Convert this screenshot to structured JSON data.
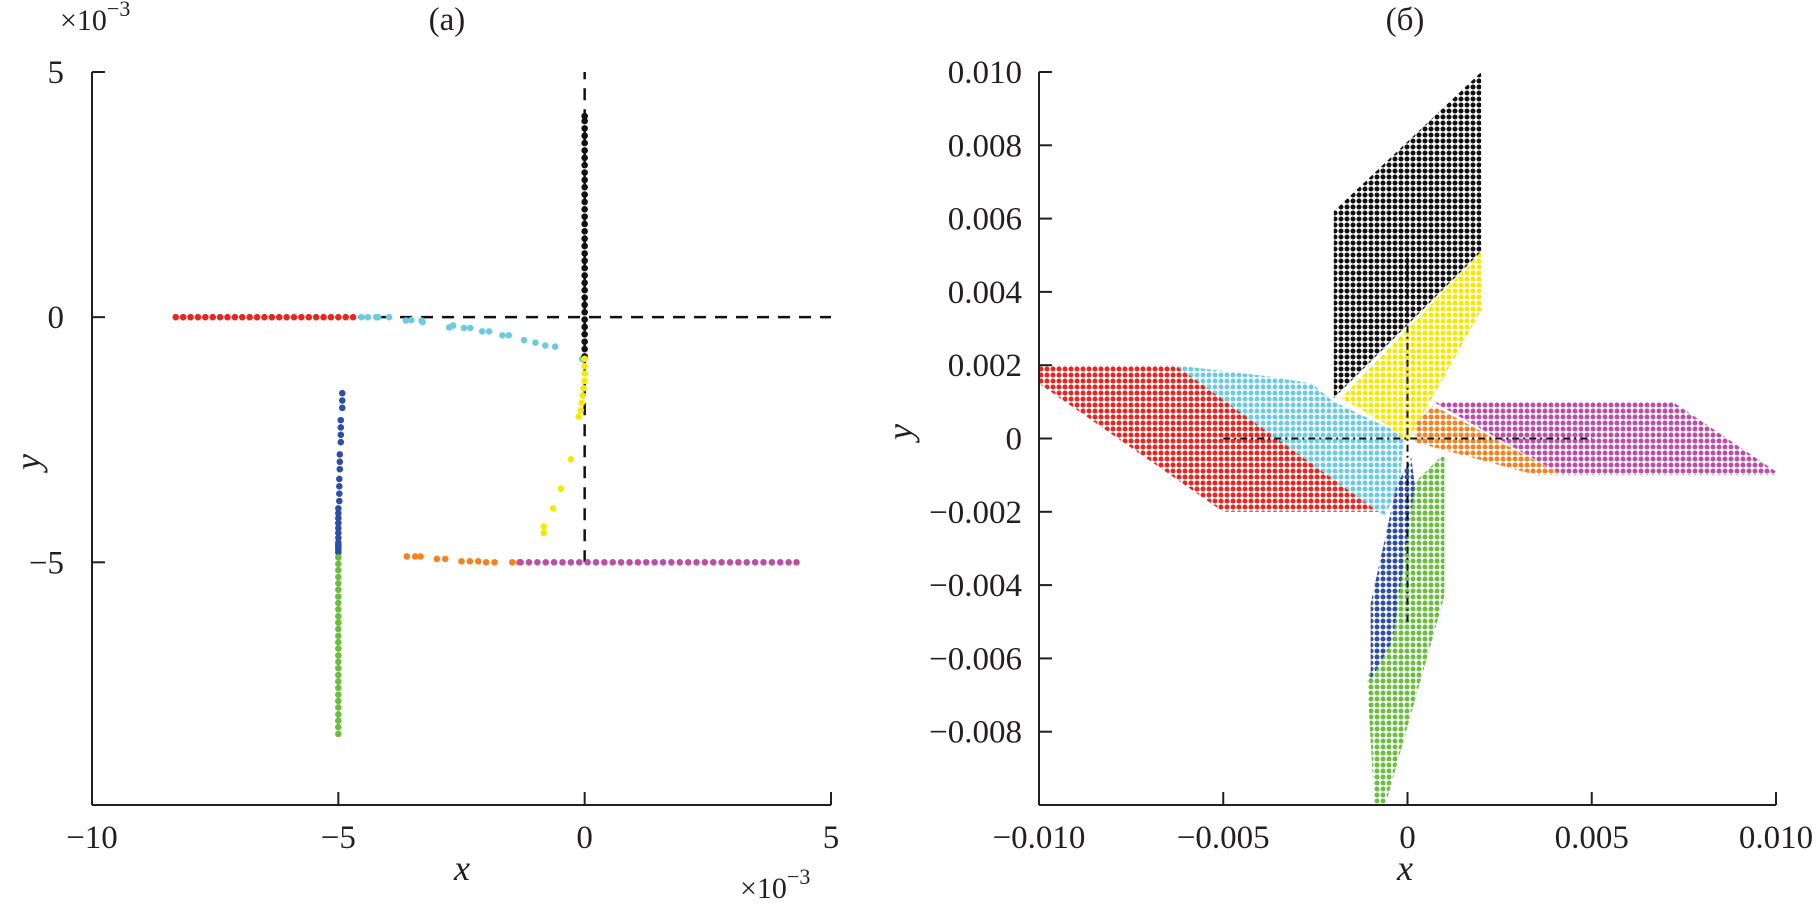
{
  "chart_data": [
    {
      "type": "scatter",
      "title": "(a)",
      "xlabel": "x",
      "ylabel": "y",
      "x_multiplier": "×10",
      "y_multiplier": "×10",
      "multiplier_exponent": "−3",
      "xlim": [
        -10,
        5
      ],
      "ylim": [
        -9.95,
        5
      ],
      "xticks": [
        -10,
        -5,
        0,
        5
      ],
      "xtick_labels": [
        "−10",
        "−5",
        "0",
        "5"
      ],
      "yticks": [
        5,
        0,
        -5
      ],
      "ytick_labels": [
        "5",
        "0",
        "−5"
      ],
      "grid": false,
      "reference_lines": [
        {
          "name": "horizontal",
          "x": [
            -4.6,
            5
          ],
          "y": [
            0,
            0
          ],
          "style": "dashed"
        },
        {
          "name": "vertical",
          "x": [
            0,
            0
          ],
          "y": [
            -5,
            5
          ],
          "style": "dashed"
        }
      ],
      "series": [
        {
          "name": "red",
          "color": "#e8251f",
          "x": [
            -8.3,
            -8.15,
            -8.0,
            -7.85,
            -7.7,
            -7.55,
            -7.4,
            -7.25,
            -7.1,
            -6.95,
            -6.8,
            -6.65,
            -6.5,
            -6.35,
            -6.2,
            -6.05,
            -5.9,
            -5.75,
            -5.6,
            -5.45,
            -5.3,
            -5.15,
            -5.0,
            -4.85,
            -4.7
          ],
          "y": [
            0,
            0,
            0,
            0,
            0,
            0,
            0,
            0,
            0,
            0,
            0,
            0,
            0,
            0,
            0,
            0,
            0,
            0,
            0,
            0,
            0,
            0,
            0,
            0,
            0
          ]
        },
        {
          "name": "cyan",
          "color": "#6ccbe0",
          "x": [
            -4.53,
            -4.4,
            -4.23,
            -4.19,
            -3.97,
            -3.63,
            -3.52,
            -3.31,
            -3.29,
            -2.75,
            -2.67,
            -2.45,
            -2.32,
            -2.08,
            -1.94,
            -1.67,
            -1.54,
            -1.23,
            -1.0,
            -0.8,
            -0.6,
            -0.05
          ],
          "y": [
            0,
            0,
            0,
            0,
            0,
            -0.07,
            -0.06,
            -0.07,
            -0.1,
            -0.21,
            -0.17,
            -0.22,
            -0.22,
            -0.29,
            -0.29,
            -0.37,
            -0.37,
            -0.47,
            -0.52,
            -0.58,
            -0.6,
            -0.85
          ]
        },
        {
          "name": "black",
          "color": "#111111",
          "x": [
            0,
            0,
            0,
            0,
            0,
            0,
            0,
            0,
            0,
            0,
            0,
            0,
            0,
            0,
            0,
            0,
            0,
            0,
            0,
            0,
            0,
            0,
            0,
            0,
            0,
            0,
            0,
            0,
            0,
            0,
            0,
            0,
            0,
            0
          ],
          "y": [
            -0.8,
            -0.65,
            -0.5,
            -0.35,
            -0.2,
            -0.05,
            0.1,
            0.25,
            0.4,
            0.55,
            0.7,
            0.85,
            1.0,
            1.15,
            1.3,
            1.45,
            1.6,
            1.75,
            1.9,
            2.05,
            2.2,
            2.35,
            2.5,
            2.65,
            2.8,
            2.95,
            3.1,
            3.25,
            3.4,
            3.55,
            3.7,
            3.85,
            4.0,
            4.1
          ]
        },
        {
          "name": "yellow",
          "color": "#f5e900",
          "x": [
            0,
            0,
            0,
            0,
            -0.02,
            -0.04,
            -0.06,
            -0.08,
            -0.12,
            -0.28,
            -0.48,
            -0.64,
            -0.83,
            -0.83
          ],
          "y": [
            -0.85,
            -1.0,
            -1.15,
            -1.3,
            -1.45,
            -1.6,
            -1.75,
            -1.9,
            -2.03,
            -2.9,
            -3.5,
            -3.9,
            -4.27,
            -4.4
          ]
        },
        {
          "name": "blue",
          "color": "#2e4fa3",
          "x": [
            -4.92,
            -4.92,
            -4.92,
            -4.95,
            -4.95,
            -4.95,
            -4.95,
            -4.97,
            -4.97,
            -4.97,
            -4.98,
            -4.98,
            -4.98,
            -4.98,
            -5,
            -5,
            -5,
            -5,
            -5,
            -5,
            -5,
            -5,
            -5,
            -5,
            -5,
            -5
          ],
          "y": [
            -1.55,
            -1.7,
            -1.85,
            -2.1,
            -2.25,
            -2.4,
            -2.55,
            -2.8,
            -2.95,
            -3.1,
            -3.3,
            -3.45,
            -3.6,
            -3.75,
            -3.9,
            -4.0,
            -4.1,
            -4.2,
            -4.3,
            -4.4,
            -4.5,
            -4.6,
            -4.7,
            -4.8,
            -4.75,
            -4.65
          ]
        },
        {
          "name": "green",
          "color": "#6abf3f",
          "x": [
            -5,
            -5,
            -5,
            -5,
            -5,
            -5,
            -5,
            -5,
            -5,
            -5,
            -5,
            -5,
            -5,
            -5,
            -5,
            -5,
            -5,
            -5,
            -5,
            -5,
            -5,
            -5,
            -5,
            -5,
            -5,
            -5,
            -5,
            -5
          ],
          "y": [
            -4.9,
            -5.03,
            -5.16,
            -5.3,
            -5.43,
            -5.56,
            -5.7,
            -5.83,
            -5.96,
            -6.1,
            -6.23,
            -6.36,
            -6.5,
            -6.63,
            -6.76,
            -6.9,
            -7.03,
            -7.16,
            -7.3,
            -7.43,
            -7.56,
            -7.7,
            -7.83,
            -7.96,
            -8.1,
            -8.23,
            -8.36,
            -8.5
          ]
        },
        {
          "name": "orange",
          "color": "#f5821f",
          "x": [
            -3.61,
            -3.44,
            -3.33,
            -3.0,
            -2.83,
            -2.5,
            -2.33,
            -2.16,
            -2.0,
            -1.83,
            -1.47,
            -1.33
          ],
          "y": [
            -4.88,
            -4.88,
            -4.88,
            -4.93,
            -4.93,
            -4.98,
            -4.98,
            -4.98,
            -5,
            -5,
            -5,
            -5
          ]
        },
        {
          "name": "magenta",
          "color": "#b94fa8",
          "x": [
            -1.3,
            -1.13,
            -0.96,
            -0.79,
            -0.62,
            -0.45,
            -0.28,
            -0.11,
            0.06,
            0.23,
            0.4,
            0.57,
            0.74,
            0.91,
            1.08,
            1.25,
            1.42,
            1.59,
            1.76,
            1.93,
            2.1,
            2.27,
            2.44,
            2.61,
            2.78,
            2.95,
            3.12,
            3.29,
            3.46,
            3.63,
            3.8,
            3.97,
            4.14,
            4.3
          ],
          "y": [
            -5,
            -5,
            -5,
            -5,
            -5,
            -5,
            -5,
            -5,
            -5,
            -5,
            -5,
            -5,
            -5,
            -5,
            -5,
            -5,
            -5,
            -5,
            -5,
            -5,
            -5,
            -5,
            -5,
            -5,
            -5,
            -5,
            -5,
            -5,
            -5,
            -5,
            -5,
            -5,
            -5,
            -5
          ]
        }
      ]
    },
    {
      "type": "scatter",
      "title": "(б)",
      "xlabel": "x",
      "ylabel": "y",
      "xlim": [
        -0.01,
        0.01
      ],
      "ylim": [
        -0.01,
        0.01
      ],
      "xticks": [
        -0.01,
        -0.005,
        0,
        0.005,
        0.01
      ],
      "xtick_labels": [
        "−0.010",
        "−0.005",
        "0",
        "0.005",
        "0.010"
      ],
      "yticks": [
        0.01,
        0.008,
        0.006,
        0.004,
        0.002,
        0,
        -0.002,
        -0.004,
        -0.006,
        -0.008
      ],
      "ytick_labels": [
        "0.010",
        "0.008",
        "0.006",
        "0.004",
        "0.002",
        "0",
        "−0.002",
        "−0.004",
        "−0.006",
        "−0.008"
      ],
      "grid": false,
      "reference_lines": [
        {
          "name": "horizontal",
          "x": [
            -0.005,
            0.005
          ],
          "y": [
            0,
            0
          ],
          "style": "dash-dot"
        },
        {
          "name": "vertical",
          "x": [
            0,
            0
          ],
          "y": [
            -0.005,
            0.005
          ],
          "style": "dash-dot"
        }
      ],
      "regions": [
        {
          "name": "red",
          "color": "#e8251f",
          "points": [
            [
              -0.01,
              0.002
            ],
            [
              -0.0063,
              0.002
            ],
            [
              -0.0007,
              -0.002
            ],
            [
              -0.005,
              -0.002
            ],
            [
              -0.01,
              0.0015
            ]
          ]
        },
        {
          "name": "cyan",
          "color": "#6ccbe0",
          "points": [
            [
              -0.0063,
              0.002
            ],
            [
              -0.0038,
              0.0017
            ],
            [
              -0.0026,
              0.0015
            ],
            [
              -0.002,
              0.001
            ],
            [
              -0.0001,
              0.0001
            ],
            [
              -0.0002,
              -0.0012
            ],
            [
              -0.0006,
              -0.0021
            ],
            [
              -0.0008,
              -0.002
            ]
          ]
        },
        {
          "name": "black",
          "color": "#111111",
          "points": [
            [
              -0.002,
              0.0062
            ],
            [
              0.002,
              0.01
            ],
            [
              0.002,
              0.0051
            ],
            [
              -0.002,
              0.0011
            ]
          ]
        },
        {
          "name": "yellow",
          "color": "#f5e900",
          "points": [
            [
              -0.0018,
              0.0011
            ],
            [
              0.002,
              0.0051
            ],
            [
              0.002,
              0.0035
            ],
            [
              0.0,
              -0.0001
            ],
            [
              -0.0006,
              0.0004
            ]
          ]
        },
        {
          "name": "magenta",
          "color": "#b94fa8",
          "points": [
            [
              0.0007,
              0.001
            ],
            [
              0.0072,
              0.001
            ],
            [
              0.01,
              -0.0009
            ],
            [
              0.01,
              -0.001
            ],
            [
              0.0042,
              -0.001
            ]
          ]
        },
        {
          "name": "orange",
          "color": "#f5821f",
          "points": [
            [
              0.0002,
              0.0004
            ],
            [
              0.0007,
              0.0009
            ],
            [
              0.0042,
              -0.001
            ],
            [
              0.0035,
              -0.001
            ],
            [
              0.0002,
              -0.0001
            ]
          ]
        },
        {
          "name": "green",
          "color": "#6abf3f",
          "points": [
            [
              0.0001,
              -0.0013
            ],
            [
              0.0009,
              -0.0005
            ],
            [
              0.001,
              -0.0005
            ],
            [
              0.001,
              -0.0043
            ],
            [
              -0.0006,
              -0.01
            ],
            [
              -0.0009,
              -0.01
            ],
            [
              -0.0011,
              -0.0065
            ],
            [
              -0.0004,
              -0.0055
            ]
          ]
        },
        {
          "name": "blue",
          "color": "#2e4fa3",
          "points": [
            [
              -0.0003,
              -0.0013
            ],
            [
              0.0001,
              -0.0005
            ],
            [
              0.0002,
              -0.0013
            ],
            [
              -0.0004,
              -0.0055
            ],
            [
              -0.001,
              -0.0066
            ],
            [
              -0.001,
              -0.0045
            ]
          ]
        }
      ]
    }
  ]
}
